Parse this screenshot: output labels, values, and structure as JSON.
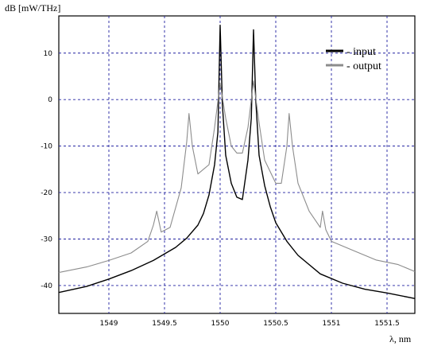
{
  "chart_data": {
    "type": "line",
    "title": "",
    "ylabel": "dB [mW/THz]",
    "xlabel": "λ, nm",
    "xlim": [
      1548.55,
      1551.75
    ],
    "ylim": [
      -46,
      18
    ],
    "xticks": [
      1549,
      1549.5,
      1550,
      1550.5,
      1551,
      1551.5
    ],
    "xtick_labels": [
      "1549",
      "1549.5",
      "1550",
      "1550.5",
      "1551",
      "1551.5"
    ],
    "yticks": [
      -40,
      -30,
      -20,
      -10,
      0,
      10
    ],
    "ytick_labels": [
      "-40",
      "-30",
      "-20",
      "-10",
      "0",
      "10"
    ],
    "grid": true,
    "legend_position": "top-right",
    "series": [
      {
        "name": "- input",
        "color": "#000000",
        "x": [
          1548.55,
          1548.8,
          1549.0,
          1549.2,
          1549.4,
          1549.6,
          1549.7,
          1549.8,
          1549.85,
          1549.9,
          1549.95,
          1549.98,
          1550.0,
          1550.02,
          1550.05,
          1550.1,
          1550.15,
          1550.2,
          1550.25,
          1550.28,
          1550.3,
          1550.32,
          1550.35,
          1550.4,
          1550.45,
          1550.5,
          1550.6,
          1550.7,
          1550.9,
          1551.1,
          1551.3,
          1551.5,
          1551.75
        ],
        "y": [
          -41.5,
          -40.2,
          -38.6,
          -36.8,
          -34.6,
          -31.8,
          -29.8,
          -27,
          -24.5,
          -20.5,
          -14,
          -7,
          16,
          -1,
          -12,
          -18,
          -21,
          -21.5,
          -13,
          -4,
          15,
          0,
          -12,
          -18.5,
          -23,
          -26.5,
          -30.5,
          -33.5,
          -37.5,
          -39.5,
          -40.8,
          -41.6,
          -42.8
        ]
      },
      {
        "name": "- output",
        "color": "#8c8c8c",
        "x": [
          1548.55,
          1548.8,
          1549.0,
          1549.2,
          1549.35,
          1549.4,
          1549.43,
          1549.47,
          1549.55,
          1549.65,
          1549.7,
          1549.72,
          1549.75,
          1549.8,
          1549.9,
          1549.95,
          1550.0,
          1550.05,
          1550.1,
          1550.15,
          1550.2,
          1550.25,
          1550.3,
          1550.35,
          1550.4,
          1550.5,
          1550.55,
          1550.6,
          1550.62,
          1550.65,
          1550.7,
          1550.8,
          1550.9,
          1550.92,
          1550.95,
          1551.0,
          1551.2,
          1551.4,
          1551.6,
          1551.75
        ],
        "y": [
          -37.2,
          -36,
          -34.6,
          -33,
          -30.5,
          -27,
          -24,
          -28.5,
          -27.5,
          -19,
          -9,
          -3,
          -10,
          -16,
          -14,
          -6,
          3.5,
          -4,
          -10,
          -11.5,
          -11.5,
          -6,
          4,
          -5,
          -13,
          -18,
          -18,
          -10,
          -3,
          -10,
          -18,
          -24,
          -27.5,
          -24,
          -28,
          -30.5,
          -32.5,
          -34.5,
          -35.5,
          -37
        ]
      }
    ],
    "legend": [
      {
        "label": "- input",
        "color": "#000000"
      },
      {
        "label": "- output",
        "color": "#8c8c8c"
      }
    ]
  }
}
